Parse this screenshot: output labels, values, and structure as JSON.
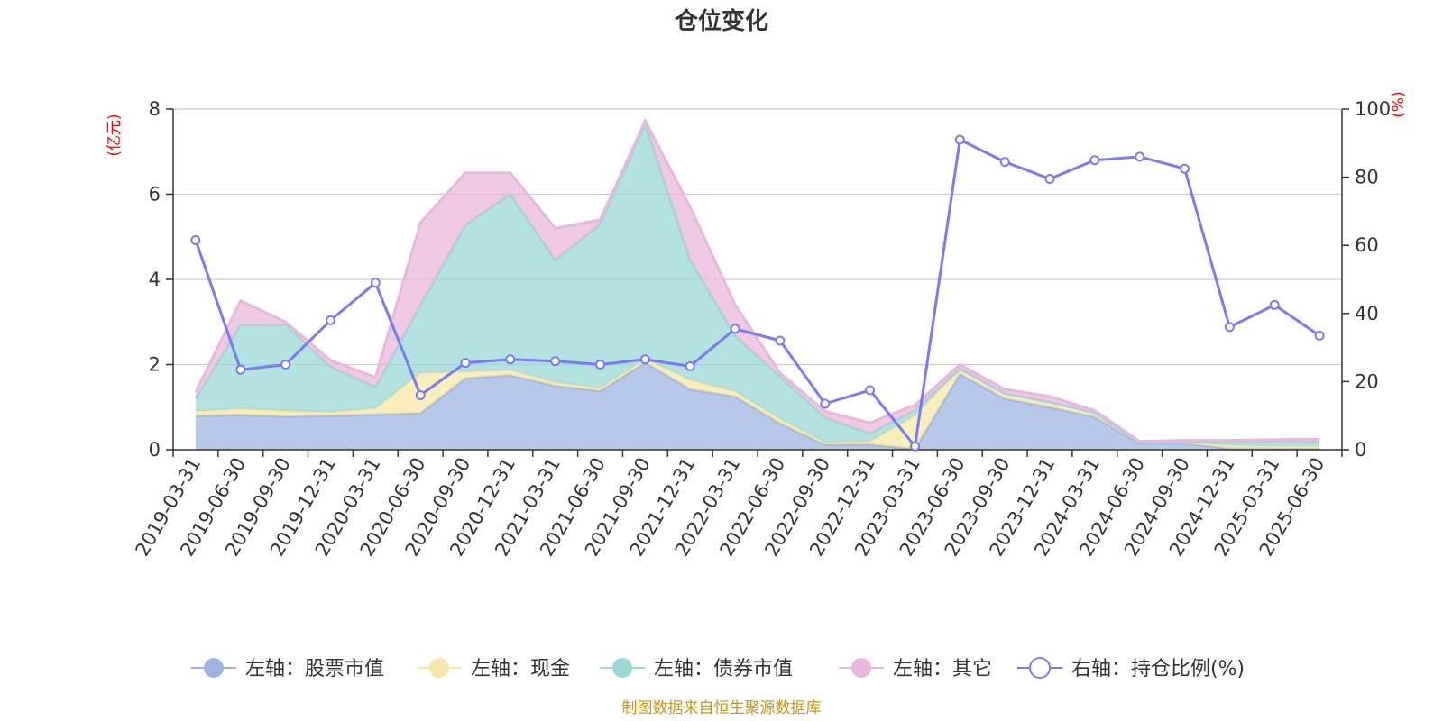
{
  "chart_data": {
    "type": "area",
    "title": "仓位变化",
    "left_axis_unit": "(亿元)",
    "right_axis_unit": "(%)",
    "source": "制图数据来自恒生聚源数据库",
    "categories": [
      "2019-03-31",
      "2019-06-30",
      "2019-09-30",
      "2019-12-31",
      "2020-03-31",
      "2020-06-30",
      "2020-09-30",
      "2020-12-31",
      "2021-03-31",
      "2021-06-30",
      "2021-09-30",
      "2021-12-31",
      "2022-03-31",
      "2022-06-30",
      "2022-09-30",
      "2022-12-31",
      "2023-03-31",
      "2023-06-30",
      "2023-09-30",
      "2023-12-31",
      "2024-03-31",
      "2024-06-30",
      "2024-09-30",
      "2024-12-31",
      "2025-03-31",
      "2025-06-30"
    ],
    "left_ylim": [
      0,
      8
    ],
    "left_yticks": [
      0,
      2,
      4,
      6,
      8
    ],
    "right_ylim": [
      0,
      100
    ],
    "right_yticks": [
      0,
      20,
      40,
      60,
      80,
      100
    ],
    "grid": true,
    "legend_position": "bottom",
    "series": [
      {
        "name": "左轴：股票市值",
        "axis": "left",
        "stack": true,
        "color": "#9db5e0",
        "values": [
          0.8,
          0.82,
          0.78,
          0.8,
          0.83,
          0.86,
          1.68,
          1.75,
          1.5,
          1.38,
          2.05,
          1.42,
          1.25,
          0.62,
          0.12,
          0.12,
          0.02,
          1.78,
          1.2,
          1.0,
          0.77,
          0.15,
          0.15,
          0.03,
          0.03,
          0.03
        ]
      },
      {
        "name": "左轴：现金",
        "axis": "left",
        "stack": true,
        "color": "#f8e7a8",
        "values": [
          0.1,
          0.14,
          0.13,
          0.08,
          0.14,
          0.94,
          0.15,
          0.12,
          0.08,
          0.07,
          0.08,
          0.22,
          0.12,
          0.1,
          0.05,
          0.08,
          0.78,
          0.12,
          0.12,
          0.12,
          0.1,
          0.02,
          0.02,
          0.07,
          0.05,
          0.05
        ]
      },
      {
        "name": "左轴：债券市值",
        "axis": "left",
        "stack": true,
        "color": "#9ad8d6",
        "values": [
          0.3,
          1.97,
          2.02,
          1.07,
          0.5,
          1.6,
          3.45,
          4.13,
          2.87,
          3.85,
          5.52,
          2.81,
          1.3,
          1.0,
          0.58,
          0.18,
          0.13,
          0.0,
          0.0,
          0.0,
          0.0,
          0.0,
          0.0,
          0.08,
          0.1,
          0.1
        ]
      },
      {
        "name": "左轴：其它",
        "axis": "left",
        "stack": true,
        "color": "#e8b8dc",
        "values": [
          0.15,
          0.57,
          0.07,
          0.15,
          0.23,
          1.93,
          1.22,
          0.5,
          0.75,
          0.1,
          0.07,
          1.25,
          0.73,
          0.08,
          0.15,
          0.25,
          0.12,
          0.1,
          0.1,
          0.13,
          0.05,
          0.03,
          0.05,
          0.04,
          0.06,
          0.07
        ]
      },
      {
        "name": "右轴：持仓比例(%)",
        "axis": "right",
        "type": "line",
        "color": "#7b7bf0",
        "values": [
          61.5,
          23.5,
          25.0,
          38.0,
          49.0,
          16.0,
          25.5,
          26.5,
          26.0,
          25.0,
          26.5,
          24.5,
          35.5,
          32.0,
          13.5,
          17.5,
          1.0,
          91.0,
          84.5,
          79.5,
          85.0,
          86.0,
          82.5,
          36.0,
          42.5,
          33.5
        ]
      }
    ]
  }
}
